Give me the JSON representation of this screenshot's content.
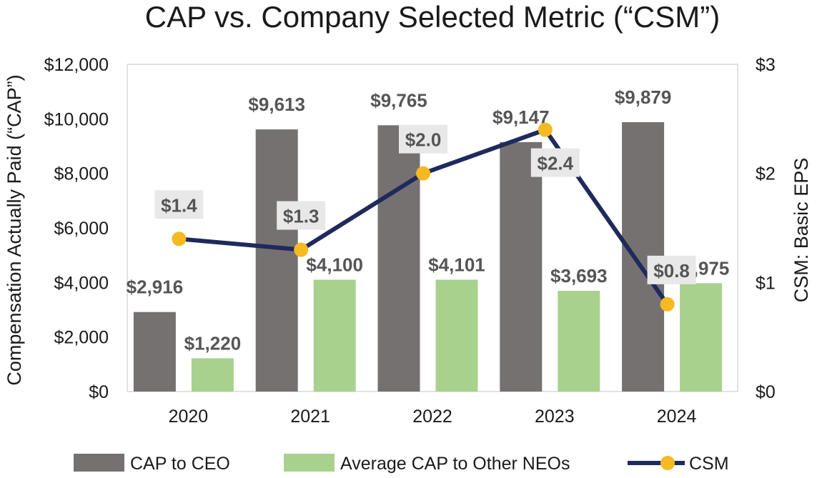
{
  "chart_data": {
    "type": "bar",
    "title": "CAP vs. Company Selected Metric (“CSM”)",
    "categories": [
      "2020",
      "2021",
      "2022",
      "2023",
      "2024"
    ],
    "ylabel": "Compensation Actually Paid (“CAP”)",
    "y2label": "CSM: Basic EPS",
    "ylim": [
      0,
      12000
    ],
    "y2lim": [
      0,
      3
    ],
    "yticks": [
      "$0",
      "$2,000",
      "$4,000",
      "$6,000",
      "$8,000",
      "$10,000",
      "$12,000"
    ],
    "y2ticks": [
      "$0",
      "$1",
      "$2",
      "$3"
    ],
    "legend_position": "bottom",
    "grid": false,
    "series": [
      {
        "name": "CAP to CEO",
        "kind": "bar",
        "axis": "left",
        "color": "#767171",
        "values": [
          2916,
          9613,
          9765,
          9147,
          9879
        ],
        "labels": [
          "$2,916",
          "$9,613",
          "$9,765",
          "$9,147",
          "$9,879"
        ]
      },
      {
        "name": "Average CAP to Other NEOs",
        "kind": "bar",
        "axis": "left",
        "color": "#a9d18e",
        "values": [
          1220,
          4100,
          4101,
          3693,
          3975
        ],
        "labels": [
          "$1,220",
          "$4,100",
          "$4,101",
          "$3,693",
          "$3,975"
        ]
      },
      {
        "name": "CSM",
        "kind": "line",
        "axis": "right",
        "color": "#1f2a5c",
        "marker_color": "#f5b921",
        "values": [
          1.4,
          1.3,
          2.0,
          2.4,
          0.8
        ],
        "labels": [
          "$1.4",
          "$1.3",
          "$2.0",
          "$2.4",
          "$0.8"
        ]
      }
    ]
  }
}
